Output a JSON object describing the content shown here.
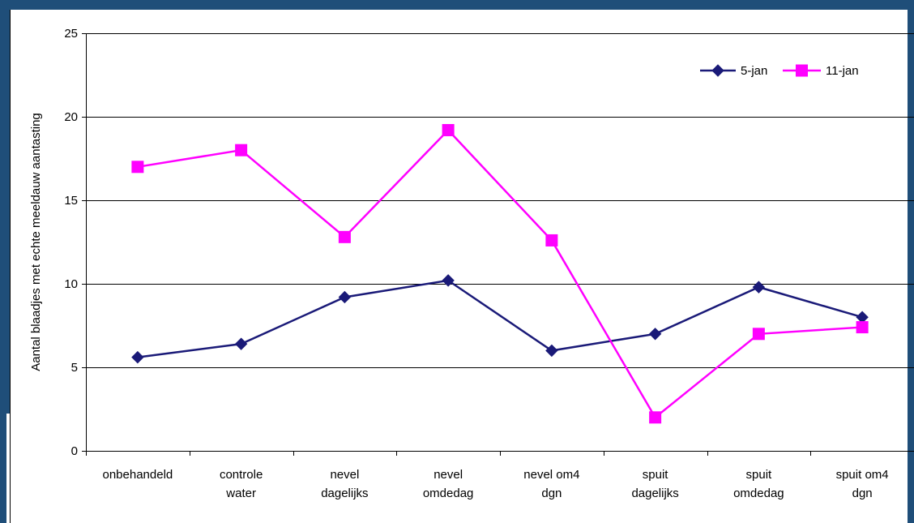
{
  "chart_data": {
    "type": "line",
    "categories": [
      [
        "onbehandeld"
      ],
      [
        "controle",
        "water"
      ],
      [
        "nevel",
        "dagelijks"
      ],
      [
        "nevel",
        "omdedag"
      ],
      [
        "nevel om4",
        "dgn"
      ],
      [
        "spuit",
        "dagelijks"
      ],
      [
        "spuit",
        "omdedag"
      ],
      [
        "spuit om4",
        "dgn"
      ]
    ],
    "series": [
      {
        "name": "5-jan",
        "color": "#1a1a78",
        "marker": "diamond",
        "values": [
          5.6,
          6.4,
          9.2,
          10.2,
          6.0,
          7.0,
          9.8,
          8.0
        ]
      },
      {
        "name": "11-jan",
        "color": "#ff00ff",
        "marker": "square",
        "values": [
          17.0,
          18.0,
          12.8,
          19.2,
          12.6,
          2.0,
          7.0,
          7.4
        ]
      }
    ],
    "ylabel": "Aantal blaadjes met echte meeldauw aantasting",
    "xlabel": "",
    "title": "",
    "ylim": [
      0,
      25
    ],
    "yticks": [
      0,
      5,
      10,
      15,
      20,
      25
    ],
    "grid": true,
    "legend": "top-right"
  },
  "colors": {
    "frame": "#1f4e79",
    "gridline": "#000000"
  }
}
